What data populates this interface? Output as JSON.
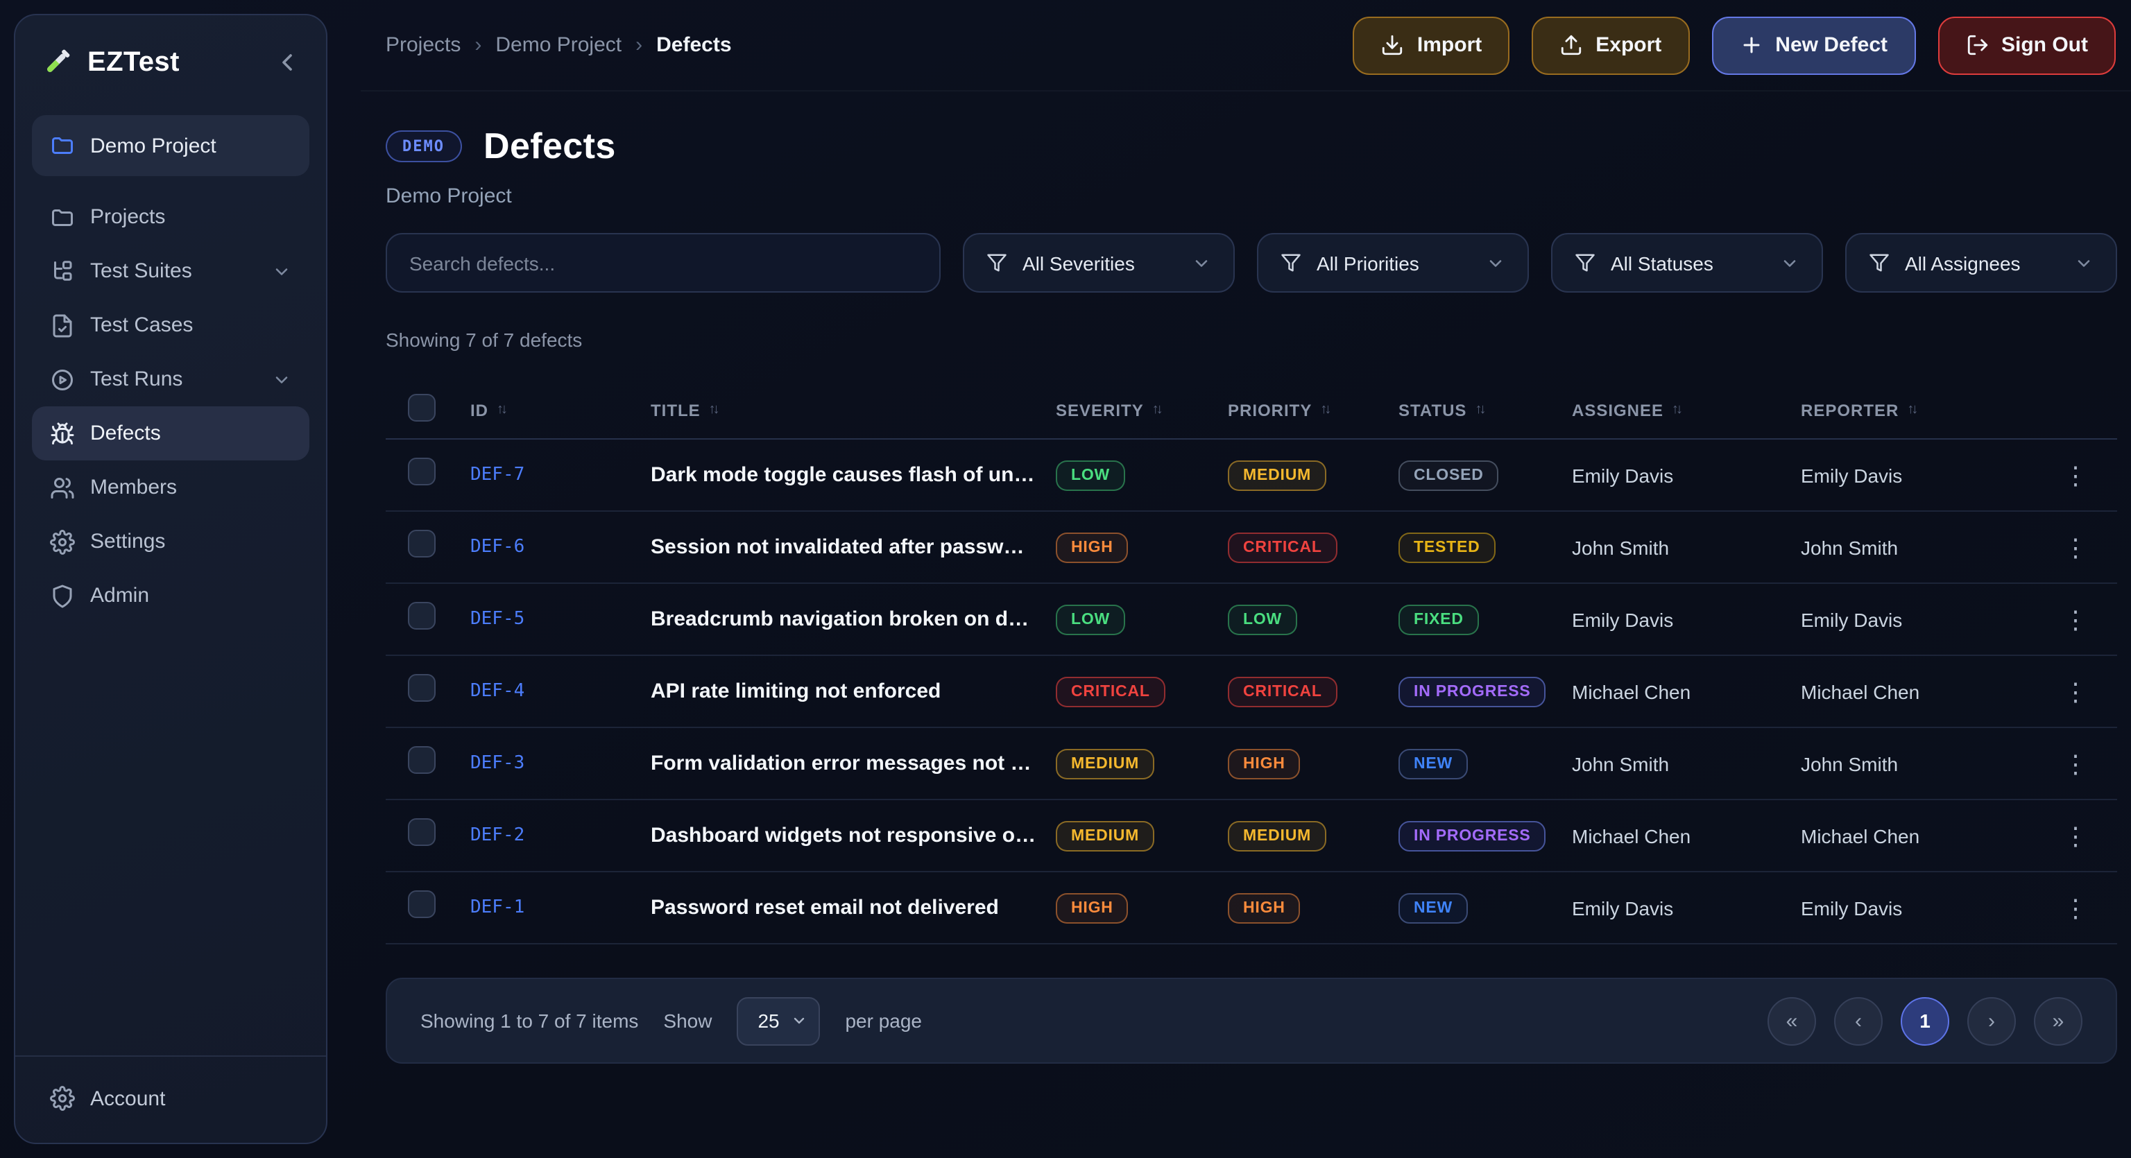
{
  "app": {
    "name": "EZTest"
  },
  "sidebar": {
    "project_item": {
      "label": "Demo Project",
      "icon": "folder"
    },
    "items": [
      {
        "label": "Projects",
        "icon": "folder"
      },
      {
        "label": "Test Suites",
        "icon": "tree",
        "expandable": true
      },
      {
        "label": "Test Cases",
        "icon": "file-check"
      },
      {
        "label": "Test Runs",
        "icon": "play-circle",
        "expandable": true
      },
      {
        "label": "Defects",
        "icon": "bug",
        "active": true
      },
      {
        "label": "Members",
        "icon": "users"
      },
      {
        "label": "Settings",
        "icon": "gear"
      },
      {
        "label": "Admin",
        "icon": "shield"
      }
    ],
    "footer": {
      "label": "Account",
      "icon": "gear"
    }
  },
  "header": {
    "breadcrumb": [
      "Projects",
      "Demo Project",
      "Defects"
    ],
    "buttons": [
      {
        "label": "Import",
        "icon": "download",
        "style": "amber"
      },
      {
        "label": "Export",
        "icon": "upload",
        "style": "amber"
      },
      {
        "label": "New Defect",
        "icon": "plus",
        "style": "blue"
      },
      {
        "label": "Sign Out",
        "icon": "log-out",
        "style": "red"
      }
    ]
  },
  "page": {
    "badge": "DEMO",
    "title": "Defects",
    "subtitle": "Demo Project",
    "search_placeholder": "Search defects...",
    "filters": [
      "All Severities",
      "All Priorities",
      "All Statuses",
      "All Assignees"
    ],
    "results_summary": "Showing 7 of 7 defects"
  },
  "table": {
    "columns": [
      "ID",
      "TITLE",
      "SEVERITY",
      "PRIORITY",
      "STATUS",
      "ASSIGNEE",
      "REPORTER"
    ],
    "rows": [
      {
        "id": "DEF-7",
        "title": "Dark mode toggle causes flash of unstyled c...",
        "severity": "LOW",
        "priority": "MEDIUM",
        "status": "CLOSED",
        "assignee": "Emily Davis",
        "reporter": "Emily Davis"
      },
      {
        "id": "DEF-6",
        "title": "Session not invalidated after password chan...",
        "severity": "HIGH",
        "priority": "CRITICAL",
        "status": "TESTED",
        "assignee": "John Smith",
        "reporter": "John Smith"
      },
      {
        "id": "DEF-5",
        "title": "Breadcrumb navigation broken on deep rou...",
        "severity": "LOW",
        "priority": "LOW",
        "status": "FIXED",
        "assignee": "Emily Davis",
        "reporter": "Emily Davis"
      },
      {
        "id": "DEF-4",
        "title": "API rate limiting not enforced",
        "severity": "CRITICAL",
        "priority": "CRITICAL",
        "status": "IN PROGRESS",
        "assignee": "Michael Chen",
        "reporter": "Michael Chen"
      },
      {
        "id": "DEF-3",
        "title": "Form validation error messages not accessible",
        "severity": "MEDIUM",
        "priority": "HIGH",
        "status": "NEW",
        "assignee": "John Smith",
        "reporter": "John Smith"
      },
      {
        "id": "DEF-2",
        "title": "Dashboard widgets not responsive on mobile",
        "severity": "MEDIUM",
        "priority": "MEDIUM",
        "status": "IN PROGRESS",
        "assignee": "Michael Chen",
        "reporter": "Michael Chen"
      },
      {
        "id": "DEF-1",
        "title": "Password reset email not delivered",
        "severity": "HIGH",
        "priority": "HIGH",
        "status": "NEW",
        "assignee": "Emily Davis",
        "reporter": "Emily Davis"
      }
    ]
  },
  "pagination": {
    "summary": "Showing 1 to 7 of 7 items",
    "show_label": "Show",
    "per_page": "25",
    "per_page_label": "per page",
    "pages": [
      "1"
    ],
    "current_page": "1",
    "nav": [
      "first",
      "prev",
      "next",
      "last"
    ]
  },
  "colors": {
    "accent_blue": "#4c7dfc",
    "badge_low": "#4ade80",
    "badge_medium": "#f5b82e",
    "badge_high": "#fb8b3c",
    "badge_critical": "#f0433f",
    "badge_closed": "#94a3b8",
    "badge_tested": "#e7b416",
    "badge_fixed": "#4ade80",
    "badge_in_progress": "#a36bfa",
    "badge_new": "#3f83f8",
    "button_import_export_border": "#996c1f",
    "button_new_defect_border": "#6478e6",
    "button_sign_out_border": "#dd3c3c"
  }
}
